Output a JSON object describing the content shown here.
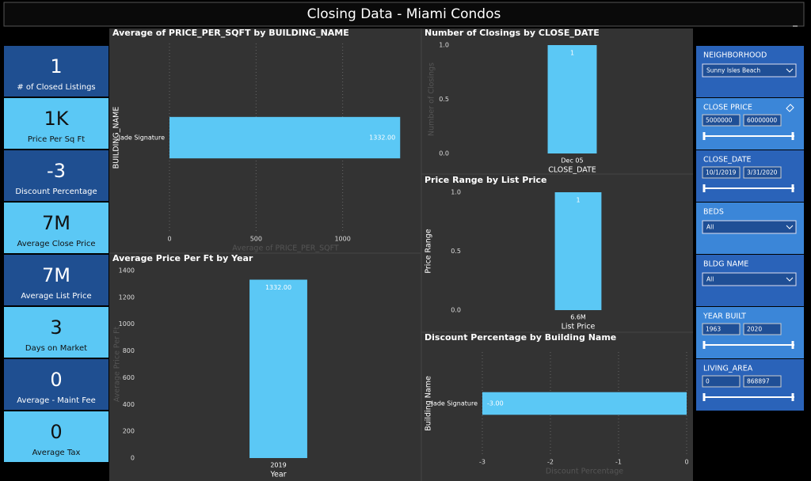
{
  "header": {
    "title": "Closing Data - Miami Condos"
  },
  "cards": [
    {
      "value": "1",
      "label": "# of Closed Listings"
    },
    {
      "value": "1K",
      "label": "Price Per Sq Ft"
    },
    {
      "value": "-3",
      "label": "Discount Percentage"
    },
    {
      "value": "7M",
      "label": "Average Close Price"
    },
    {
      "value": "7M",
      "label": "Average List Price"
    },
    {
      "value": "3",
      "label": "Days on Market"
    },
    {
      "value": "0",
      "label": "Average - Maint Fee"
    },
    {
      "value": "0",
      "label": "Average Tax"
    }
  ],
  "slicers": [
    {
      "title": "NEIGHBORHOOD",
      "dropdown": "Sunny Isles Beach"
    },
    {
      "title": "CLOSE PRICE",
      "inputs": [
        "5000000",
        "60000000"
      ]
    },
    {
      "title": "CLOSE_DATE",
      "inputs": [
        "10/1/2019",
        "3/31/2020"
      ]
    },
    {
      "title": "BEDS",
      "dropdown": "All"
    },
    {
      "title": "BLDG NAME",
      "dropdown": "All"
    },
    {
      "title": "YEAR BUILT",
      "inputs": [
        "1963",
        "2020"
      ]
    },
    {
      "title": "LIVING_AREA",
      "inputs": [
        "0",
        "868897"
      ]
    }
  ],
  "chart_data": [
    {
      "type": "bar",
      "orientation": "horizontal",
      "title": "Average of PRICE_PER_SQFT by BUILDING_NAME",
      "categories": [
        "Jade Signature"
      ],
      "values": [
        1332
      ],
      "value_labels": [
        "1332.00"
      ],
      "color": "#5bc8f5",
      "xlabel": "Average of PRICE_PER_SQFT",
      "ylabel": "BUILDING_NAME",
      "xlim": [
        0,
        1340
      ],
      "xticks": [
        0,
        500,
        1000
      ],
      "grid": true
    },
    {
      "type": "bar",
      "title": "Average Price Per Ft by Year",
      "categories": [
        "2019"
      ],
      "values": [
        1332
      ],
      "value_labels": [
        "1332.00"
      ],
      "color": "#5bc8f5",
      "xlabel": "Year",
      "ylabel": "Average Price Per Ft",
      "ylim": [
        0,
        1400
      ],
      "yticks": [
        0,
        200,
        400,
        600,
        800,
        1000,
        1200,
        1400
      ],
      "grid": false
    },
    {
      "type": "bar",
      "title": "Number of Closings by CLOSE_DATE",
      "categories": [
        "Dec 05"
      ],
      "values": [
        1
      ],
      "color": "#5bc8f5",
      "xlabel": "CLOSE_DATE",
      "ylabel": "Number of Closings",
      "ylim": [
        0,
        1
      ],
      "yticks": [
        {
          "value": 0,
          "label": "0.0"
        },
        {
          "value": 0.5,
          "label": "0.5"
        },
        {
          "value": 1,
          "label": "1.0"
        }
      ],
      "grid": false
    },
    {
      "type": "bar",
      "title": "Price Range by List Price",
      "categories": [
        "6.6M"
      ],
      "values": [
        1
      ],
      "color": "#5bc8f5",
      "xlabel": "List Price",
      "ylabel": "Price Range",
      "ylim": [
        0,
        1
      ],
      "yticks": [
        {
          "value": 0,
          "label": "0.0"
        },
        {
          "value": 0.5,
          "label": "0.5"
        },
        {
          "value": 1,
          "label": "1.0"
        }
      ],
      "grid": false
    },
    {
      "type": "bar",
      "orientation": "horizontal",
      "title": "Discount Percentage by Building Name",
      "categories": [
        "Jade Signature"
      ],
      "values": [
        -3
      ],
      "value_labels": [
        "-3.00"
      ],
      "color": "#5bc8f5",
      "xlabel": "Discount Percentage",
      "ylabel": "Building Name",
      "xlim": [
        -3,
        0
      ],
      "xticks": [
        -3,
        -2,
        -1,
        0
      ],
      "grid": true
    }
  ]
}
